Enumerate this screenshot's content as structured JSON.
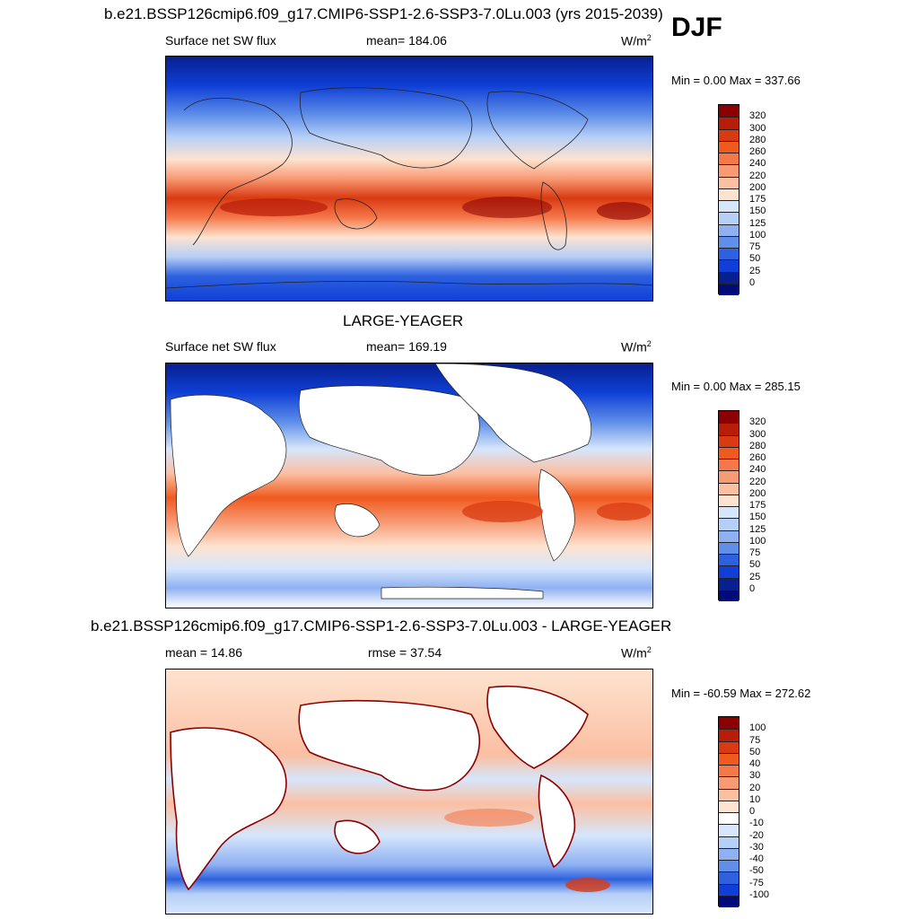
{
  "header": {
    "title": "b.e21.BSSP126cmip6.f09_g17.CMIP6-SSP1-2.6-SSP3-7.0Lu.003 (yrs 2015-2039)",
    "season": "DJF"
  },
  "panels": [
    {
      "id": "case",
      "heading": "",
      "left_label": "Surface net SW flux",
      "mid_label": "mean= 184.06",
      "units": "W/m",
      "units_sup": "2",
      "minmax": "Min =   0.00 Max = 337.66",
      "colorbar": {
        "labels": [
          "320",
          "300",
          "280",
          "260",
          "240",
          "220",
          "200",
          "175",
          "150",
          "125",
          "100",
          "75",
          "50",
          "25",
          "0"
        ],
        "colors": [
          "#8b0000",
          "#b81d0a",
          "#d93a12",
          "#f05a1e",
          "#f5784a",
          "#f89a74",
          "#fbbfa2",
          "#fde3d0",
          "#d6e6fb",
          "#b6cff7",
          "#8fb1f2",
          "#5f8fe9",
          "#2d61df",
          "#0f3fd6",
          "#08208f",
          "#000a7a"
        ]
      }
    },
    {
      "id": "obs",
      "heading": "LARGE-YEAGER",
      "left_label": "Surface net SW flux",
      "mid_label": "mean= 169.19",
      "units": "W/m",
      "units_sup": "2",
      "minmax": "Min =   0.00 Max = 285.15",
      "colorbar": {
        "labels": [
          "320",
          "300",
          "280",
          "260",
          "240",
          "220",
          "200",
          "175",
          "150",
          "125",
          "100",
          "75",
          "50",
          "25",
          "0"
        ],
        "colors": [
          "#8b0000",
          "#b81d0a",
          "#d93a12",
          "#f05a1e",
          "#f5784a",
          "#f89a74",
          "#fbbfa2",
          "#fde3d0",
          "#d6e6fb",
          "#b6cff7",
          "#8fb1f2",
          "#5f8fe9",
          "#2d61df",
          "#0f3fd6",
          "#08208f",
          "#000a7a"
        ]
      }
    },
    {
      "id": "diff",
      "heading": "b.e21.BSSP126cmip6.f09_g17.CMIP6-SSP1-2.6-SSP3-7.0Lu.003 - LARGE-YEAGER",
      "left_label": "mean =  14.86",
      "mid_label": "rmse =  37.54",
      "units": "W/m",
      "units_sup": "2",
      "minmax": "Min = -60.59 Max = 272.62",
      "colorbar": {
        "labels": [
          "100",
          "75",
          "50",
          "40",
          "30",
          "20",
          "10",
          "0",
          "-10",
          "-20",
          "-30",
          "-40",
          "-50",
          "-75",
          "-100"
        ],
        "colors": [
          "#8b0000",
          "#b81d0a",
          "#d93a12",
          "#f05a1e",
          "#f5784a",
          "#f89a74",
          "#fbbfa2",
          "#fde3d0",
          "#ffffff",
          "#d6e6fb",
          "#b6cff7",
          "#8fb1f2",
          "#5f8fe9",
          "#2d61df",
          "#0f3fd6",
          "#000a7a"
        ]
      }
    }
  ]
}
